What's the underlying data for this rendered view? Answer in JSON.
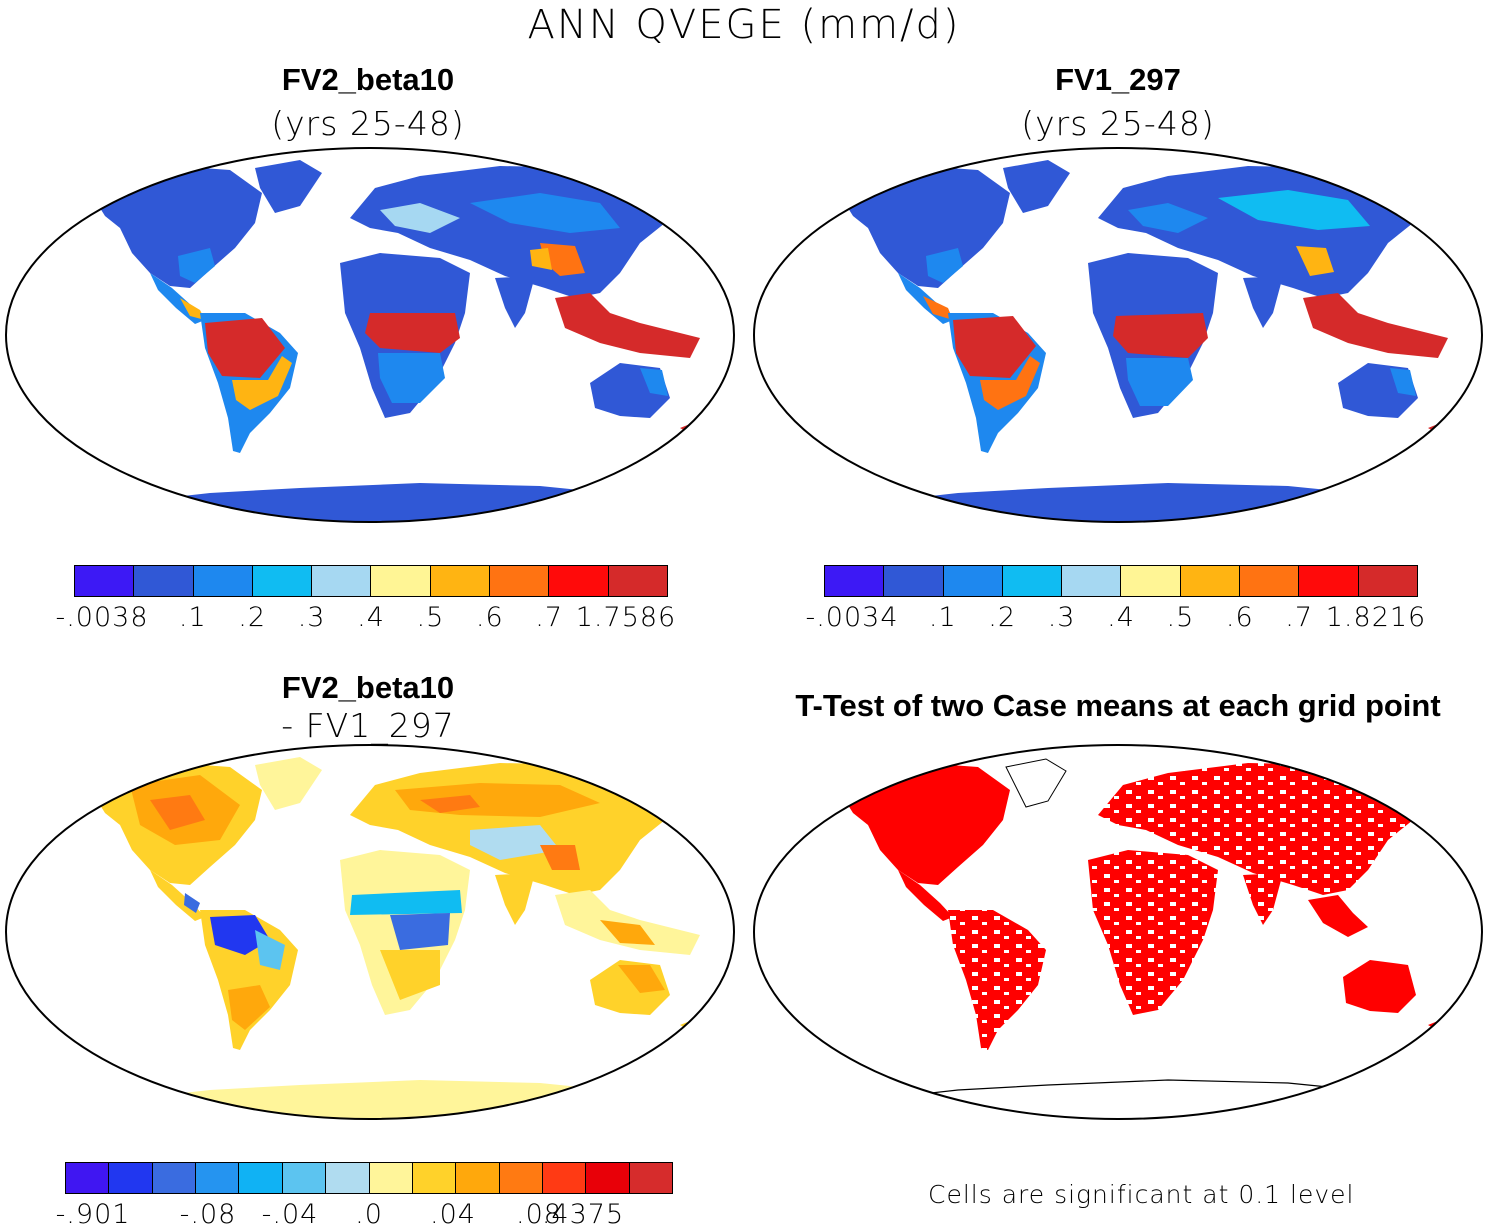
{
  "figure": {
    "title": "ANN QVEGE (mm/d)"
  },
  "panels": [
    {
      "id": "fv2",
      "title": "FV2_beta10",
      "subtitle": "(yrs 25-48)",
      "colorbar": {
        "colors": [
          "#3d19f5",
          "#3058d6",
          "#1e88ef",
          "#10bcf2",
          "#a6d8f2",
          "#fff595",
          "#ffb412",
          "#ff7312",
          "#ff0a0a",
          "#d52a2a"
        ],
        "ticks": [
          "-.0038",
          ".1",
          ".2",
          ".3",
          ".4",
          ".5",
          ".6",
          ".7",
          "1.7586"
        ]
      }
    },
    {
      "id": "fv1",
      "title": "FV1_297",
      "subtitle": "(yrs 25-48)",
      "colorbar": {
        "colors": [
          "#3d19f5",
          "#3058d6",
          "#1e88ef",
          "#10bcf2",
          "#a6d8f2",
          "#fff595",
          "#ffb412",
          "#ff7312",
          "#ff0a0a",
          "#d52a2a"
        ],
        "ticks": [
          "-.0034",
          ".1",
          ".2",
          ".3",
          ".4",
          ".5",
          ".6",
          ".7",
          "1.8216"
        ]
      }
    },
    {
      "id": "diff",
      "title": "FV2_beta10",
      "subtitle": "- FV1_297",
      "colorbar": {
        "colors": [
          "#4016f2",
          "#2137f0",
          "#3a6ce0",
          "#2594f0",
          "#10b2f4",
          "#5cc4f0",
          "#b0dcf0",
          "#fff59a",
          "#ffd22a",
          "#ffa80c",
          "#ff7a12",
          "#ff3a14",
          "#e80008",
          "#d62c2c"
        ],
        "ticks": [
          "-.901",
          "-.08",
          "-.04",
          ".0",
          ".04",
          ".08",
          ".4375"
        ]
      }
    },
    {
      "id": "ttest",
      "title": "T-Test of two Case means at each grid point",
      "note": "Cells are significant at 0.1 level",
      "significant_color": "#ff0000"
    }
  ]
}
